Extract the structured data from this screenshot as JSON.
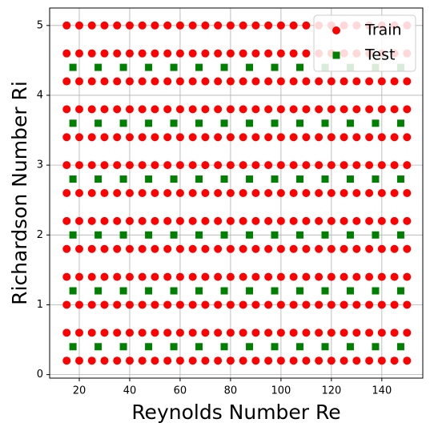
{
  "chart_data": {
    "type": "scatter",
    "xlabel": "Reynolds Number Re",
    "ylabel": "Richardson Number Ri",
    "xlim": [
      8.25,
      156.25
    ],
    "ylim": [
      -0.05,
      5.25
    ],
    "xticks": [
      20,
      40,
      60,
      80,
      100,
      120,
      140
    ],
    "yticks": [
      0,
      1,
      2,
      3,
      4,
      5
    ],
    "grid": true,
    "legend": "upper right",
    "series": [
      {
        "name": "Train",
        "color": "#ff0000",
        "marker": "circle",
        "x": [
          15,
          20,
          25,
          30,
          35,
          40,
          45,
          50,
          55,
          60,
          65,
          70,
          75,
          80,
          85,
          90,
          95,
          100,
          105,
          110,
          115,
          120,
          125,
          130,
          135,
          140,
          145,
          150,
          15,
          20,
          25,
          30,
          35,
          40,
          45,
          50,
          55,
          60,
          65,
          70,
          75,
          80,
          85,
          90,
          95,
          100,
          105,
          110,
          115,
          120,
          125,
          130,
          135,
          140,
          145,
          150,
          15,
          20,
          25,
          30,
          35,
          40,
          45,
          50,
          55,
          60,
          65,
          70,
          75,
          80,
          85,
          90,
          95,
          100,
          105,
          110,
          115,
          120,
          125,
          130,
          135,
          140,
          145,
          150,
          15,
          20,
          25,
          30,
          35,
          40,
          45,
          50,
          55,
          60,
          65,
          70,
          75,
          80,
          85,
          90,
          95,
          100,
          105,
          110,
          115,
          120,
          125,
          130,
          135,
          140,
          145,
          150,
          15,
          20,
          25,
          30,
          35,
          40,
          45,
          50,
          55,
          60,
          65,
          70,
          75,
          80,
          85,
          90,
          95,
          100,
          105,
          110,
          115,
          120,
          125,
          130,
          135,
          140,
          145,
          150,
          15,
          20,
          25,
          30,
          35,
          40,
          45,
          50,
          55,
          60,
          65,
          70,
          75,
          80,
          85,
          90,
          95,
          100,
          105,
          110,
          115,
          120,
          125,
          130,
          135,
          140,
          145,
          150,
          15,
          20,
          25,
          30,
          35,
          40,
          45,
          50,
          55,
          60,
          65,
          70,
          75,
          80,
          85,
          90,
          95,
          100,
          105,
          110,
          115,
          120,
          125,
          130,
          135,
          140,
          145,
          150,
          15,
          20,
          25,
          30,
          35,
          40,
          45,
          50,
          55,
          60,
          65,
          70,
          75,
          80,
          85,
          90,
          95,
          100,
          105,
          110,
          115,
          120,
          125,
          130,
          135,
          140,
          145,
          150,
          15,
          20,
          25,
          30,
          35,
          40,
          45,
          50,
          55,
          60,
          65,
          70,
          75,
          80,
          85,
          90,
          95,
          100,
          105,
          110,
          115,
          120,
          125,
          130,
          135,
          140,
          145,
          150,
          15,
          20,
          25,
          30,
          35,
          40,
          45,
          50,
          55,
          60,
          65,
          70,
          75,
          80,
          85,
          90,
          95,
          100,
          105,
          110,
          115,
          120,
          125,
          130,
          135,
          140,
          145,
          150,
          15,
          20,
          25,
          30,
          35,
          40,
          45,
          50,
          55,
          60,
          65,
          70,
          75,
          80,
          85,
          90,
          95,
          100,
          105,
          110,
          115,
          120,
          125,
          130,
          135,
          140,
          145,
          150,
          15,
          20,
          25,
          30,
          35,
          40,
          45,
          50,
          55,
          60,
          65,
          70,
          75,
          80,
          85,
          90,
          95,
          100,
          105,
          110,
          115,
          120,
          125,
          130,
          135,
          140,
          145,
          150,
          15,
          20,
          25,
          30,
          35,
          40,
          45,
          50,
          55,
          60,
          65,
          70,
          75,
          80,
          85,
          90,
          95,
          100,
          105,
          110,
          115,
          120,
          125,
          130,
          135,
          140,
          145,
          150
        ],
        "values": [
          0.2,
          0.2,
          0.2,
          0.2,
          0.2,
          0.2,
          0.2,
          0.2,
          0.2,
          0.2,
          0.2,
          0.2,
          0.2,
          0.2,
          0.2,
          0.2,
          0.2,
          0.2,
          0.2,
          0.2,
          0.2,
          0.2,
          0.2,
          0.2,
          0.2,
          0.2,
          0.2,
          0.2,
          0.6,
          0.6,
          0.6,
          0.6,
          0.6,
          0.6,
          0.6,
          0.6,
          0.6,
          0.6,
          0.6,
          0.6,
          0.6,
          0.6,
          0.6,
          0.6,
          0.6,
          0.6,
          0.6,
          0.6,
          0.6,
          0.6,
          0.6,
          0.6,
          0.6,
          0.6,
          0.6,
          0.6,
          1.0,
          1.0,
          1.0,
          1.0,
          1.0,
          1.0,
          1.0,
          1.0,
          1.0,
          1.0,
          1.0,
          1.0,
          1.0,
          1.0,
          1.0,
          1.0,
          1.0,
          1.0,
          1.0,
          1.0,
          1.0,
          1.0,
          1.0,
          1.0,
          1.0,
          1.0,
          1.0,
          1.0,
          1.4,
          1.4,
          1.4,
          1.4,
          1.4,
          1.4,
          1.4,
          1.4,
          1.4,
          1.4,
          1.4,
          1.4,
          1.4,
          1.4,
          1.4,
          1.4,
          1.4,
          1.4,
          1.4,
          1.4,
          1.4,
          1.4,
          1.4,
          1.4,
          1.4,
          1.4,
          1.4,
          1.4,
          1.8,
          1.8,
          1.8,
          1.8,
          1.8,
          1.8,
          1.8,
          1.8,
          1.8,
          1.8,
          1.8,
          1.8,
          1.8,
          1.8,
          1.8,
          1.8,
          1.8,
          1.8,
          1.8,
          1.8,
          1.8,
          1.8,
          1.8,
          1.8,
          1.8,
          1.8,
          1.8,
          1.8,
          2.2,
          2.2,
          2.2,
          2.2,
          2.2,
          2.2,
          2.2,
          2.2,
          2.2,
          2.2,
          2.2,
          2.2,
          2.2,
          2.2,
          2.2,
          2.2,
          2.2,
          2.2,
          2.2,
          2.2,
          2.2,
          2.2,
          2.2,
          2.2,
          2.2,
          2.2,
          2.2,
          2.2,
          2.6,
          2.6,
          2.6,
          2.6,
          2.6,
          2.6,
          2.6,
          2.6,
          2.6,
          2.6,
          2.6,
          2.6,
          2.6,
          2.6,
          2.6,
          2.6,
          2.6,
          2.6,
          2.6,
          2.6,
          2.6,
          2.6,
          2.6,
          2.6,
          2.6,
          2.6,
          2.6,
          2.6,
          3.0,
          3.0,
          3.0,
          3.0,
          3.0,
          3.0,
          3.0,
          3.0,
          3.0,
          3.0,
          3.0,
          3.0,
          3.0,
          3.0,
          3.0,
          3.0,
          3.0,
          3.0,
          3.0,
          3.0,
          3.0,
          3.0,
          3.0,
          3.0,
          3.0,
          3.0,
          3.0,
          3.0,
          3.4,
          3.4,
          3.4,
          3.4,
          3.4,
          3.4,
          3.4,
          3.4,
          3.4,
          3.4,
          3.4,
          3.4,
          3.4,
          3.4,
          3.4,
          3.4,
          3.4,
          3.4,
          3.4,
          3.4,
          3.4,
          3.4,
          3.4,
          3.4,
          3.4,
          3.4,
          3.4,
          3.4,
          3.8,
          3.8,
          3.8,
          3.8,
          3.8,
          3.8,
          3.8,
          3.8,
          3.8,
          3.8,
          3.8,
          3.8,
          3.8,
          3.8,
          3.8,
          3.8,
          3.8,
          3.8,
          3.8,
          3.8,
          3.8,
          3.8,
          3.8,
          3.8,
          3.8,
          3.8,
          3.8,
          3.8,
          4.2,
          4.2,
          4.2,
          4.2,
          4.2,
          4.2,
          4.2,
          4.2,
          4.2,
          4.2,
          4.2,
          4.2,
          4.2,
          4.2,
          4.2,
          4.2,
          4.2,
          4.2,
          4.2,
          4.2,
          4.2,
          4.2,
          4.2,
          4.2,
          4.2,
          4.2,
          4.2,
          4.2,
          4.6,
          4.6,
          4.6,
          4.6,
          4.6,
          4.6,
          4.6,
          4.6,
          4.6,
          4.6,
          4.6,
          4.6,
          4.6,
          4.6,
          4.6,
          4.6,
          4.6,
          4.6,
          4.6,
          4.6,
          4.6,
          4.6,
          4.6,
          4.6,
          4.6,
          4.6,
          4.6,
          4.6,
          5.0,
          5.0,
          5.0,
          5.0,
          5.0,
          5.0,
          5.0,
          5.0,
          5.0,
          5.0,
          5.0,
          5.0,
          5.0,
          5.0,
          5.0,
          5.0,
          5.0,
          5.0,
          5.0,
          5.0,
          5.0,
          5.0,
          5.0,
          5.0,
          5.0,
          5.0,
          5.0,
          5.0
        ]
      },
      {
        "name": "Test",
        "color": "#008000",
        "marker": "square",
        "x": [
          17.5,
          27.5,
          37.5,
          47.5,
          57.5,
          67.5,
          77.5,
          87.5,
          97.5,
          107.5,
          117.5,
          127.5,
          137.5,
          147.5,
          17.5,
          27.5,
          37.5,
          47.5,
          57.5,
          67.5,
          77.5,
          87.5,
          97.5,
          107.5,
          117.5,
          127.5,
          137.5,
          147.5,
          17.5,
          27.5,
          37.5,
          47.5,
          57.5,
          67.5,
          77.5,
          87.5,
          97.5,
          107.5,
          117.5,
          127.5,
          137.5,
          147.5,
          17.5,
          27.5,
          37.5,
          47.5,
          57.5,
          67.5,
          77.5,
          87.5,
          97.5,
          107.5,
          117.5,
          127.5,
          137.5,
          147.5,
          17.5,
          27.5,
          37.5,
          47.5,
          57.5,
          67.5,
          77.5,
          87.5,
          97.5,
          107.5,
          117.5,
          127.5,
          137.5,
          147.5,
          17.5,
          27.5,
          37.5,
          47.5,
          57.5,
          67.5,
          77.5,
          87.5,
          97.5,
          107.5,
          117.5,
          127.5,
          137.5,
          147.5
        ],
        "values": [
          0.4,
          0.4,
          0.4,
          0.4,
          0.4,
          0.4,
          0.4,
          0.4,
          0.4,
          0.4,
          0.4,
          0.4,
          0.4,
          0.4,
          1.2,
          1.2,
          1.2,
          1.2,
          1.2,
          1.2,
          1.2,
          1.2,
          1.2,
          1.2,
          1.2,
          1.2,
          1.2,
          1.2,
          2.0,
          2.0,
          2.0,
          2.0,
          2.0,
          2.0,
          2.0,
          2.0,
          2.0,
          2.0,
          2.0,
          2.0,
          2.0,
          2.0,
          2.8,
          2.8,
          2.8,
          2.8,
          2.8,
          2.8,
          2.8,
          2.8,
          2.8,
          2.8,
          2.8,
          2.8,
          2.8,
          2.8,
          3.6,
          3.6,
          3.6,
          3.6,
          3.6,
          3.6,
          3.6,
          3.6,
          3.6,
          3.6,
          3.6,
          3.6,
          3.6,
          3.6,
          4.4,
          4.4,
          4.4,
          4.4,
          4.4,
          4.4,
          4.4,
          4.4,
          4.4,
          4.4,
          4.4,
          4.4,
          4.4,
          4.4
        ]
      }
    ]
  }
}
